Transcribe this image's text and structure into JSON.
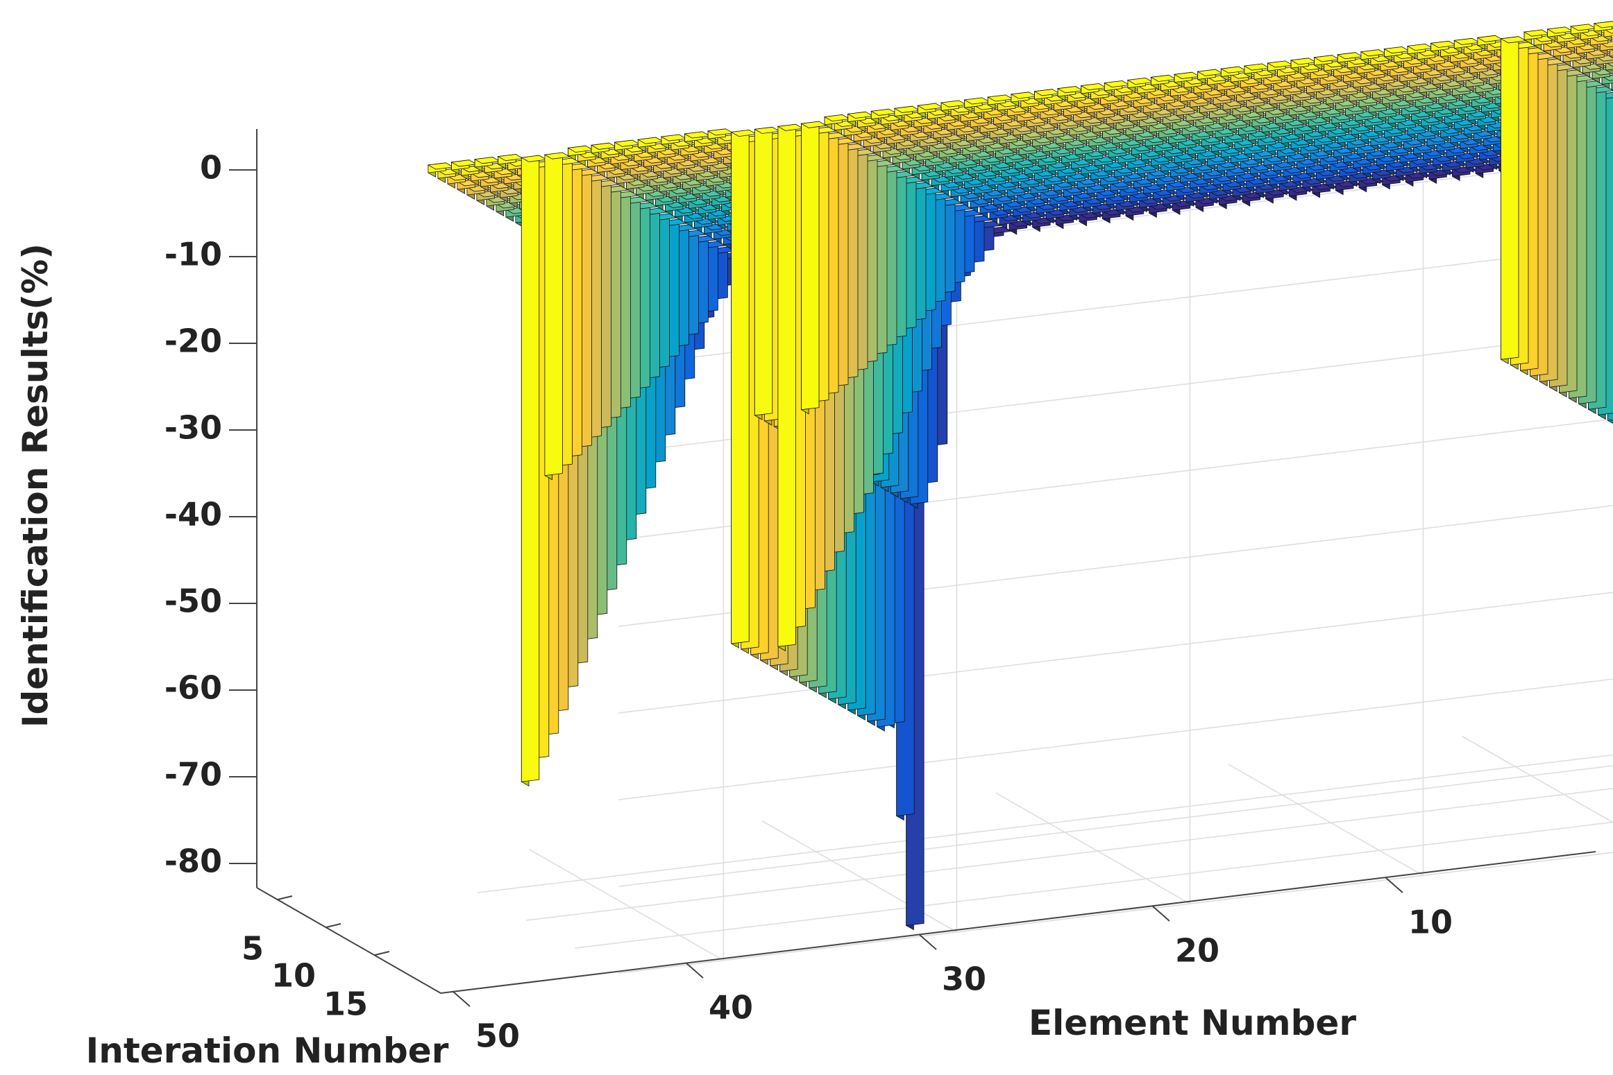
{
  "chart_data": {
    "type": "bar3d",
    "title": "",
    "xlabel": "Element Number",
    "ylabel": "Interation Number",
    "zlabel": "Identification Results(%)",
    "x_ticks": [
      10,
      20,
      30,
      40,
      50
    ],
    "y_ticks": [
      5,
      10,
      15
    ],
    "z_ticks": [
      0,
      -10,
      -20,
      -30,
      -40,
      -50,
      -60,
      -70,
      -80
    ],
    "xlim": [
      1,
      54
    ],
    "ylim": [
      1,
      20
    ],
    "zlim": [
      -80,
      0
    ],
    "grid": true,
    "colormap": "parula",
    "colormap_stops": [
      "#352a87",
      "#0f5cdd",
      "#1481d6",
      "#06a4ca",
      "#2eb7a4",
      "#87bf77",
      "#d1bb59",
      "#fec832",
      "#f9fb0e"
    ],
    "interaction_count": 20,
    "element_count": 54,
    "damaged_elements": [
      {
        "element": 8,
        "final_value": -37,
        "curve": "step",
        "values": [
          -7,
          -25,
          -31,
          -36,
          -37,
          -37,
          -37,
          -37,
          -37,
          -37,
          -37,
          -37,
          -37,
          -37,
          -37,
          -37,
          -37,
          -37,
          -37,
          -37
        ]
      },
      {
        "element": 38,
        "final_value": -33,
        "curve": "smooth"
      },
      {
        "element": 39,
        "final_value": -60,
        "curve": "smooth"
      },
      {
        "element": 40,
        "final_value": -33,
        "curve": "step",
        "values": [
          -1,
          -25,
          -30,
          -33,
          -33,
          -33,
          -33,
          -33,
          -33,
          -33,
          -33,
          -33,
          -33,
          -33,
          -33,
          -33,
          -33,
          -33,
          -33,
          -33
        ]
      },
      {
        "element": 41,
        "final_value": -59,
        "curve": "step",
        "values": [
          -25,
          -80,
          -68,
          -58,
          -59,
          -59,
          -59,
          -59,
          -59,
          -59,
          -59,
          -59,
          -59,
          -59,
          -59,
          -59,
          -59,
          -59,
          -59,
          -59
        ]
      },
      {
        "element": 49,
        "final_value": -37,
        "curve": "smooth"
      },
      {
        "element": 50,
        "final_value": -72,
        "curve": "smooth"
      }
    ],
    "positive_bumps": [
      {
        "element": 11,
        "iteration": 1,
        "value": 2
      },
      {
        "element": 12,
        "iteration": 1,
        "value": 1
      },
      {
        "element": 11,
        "iteration": 2,
        "value": 1
      },
      {
        "element": 44,
        "iteration": 1,
        "value": 3
      },
      {
        "element": 45,
        "iteration": 1,
        "value": 7
      },
      {
        "element": 44,
        "iteration": 2,
        "value": 5
      },
      {
        "element": 43,
        "iteration": 2,
        "value": 1
      },
      {
        "element": 46,
        "iteration": 2,
        "value": 2
      }
    ]
  }
}
